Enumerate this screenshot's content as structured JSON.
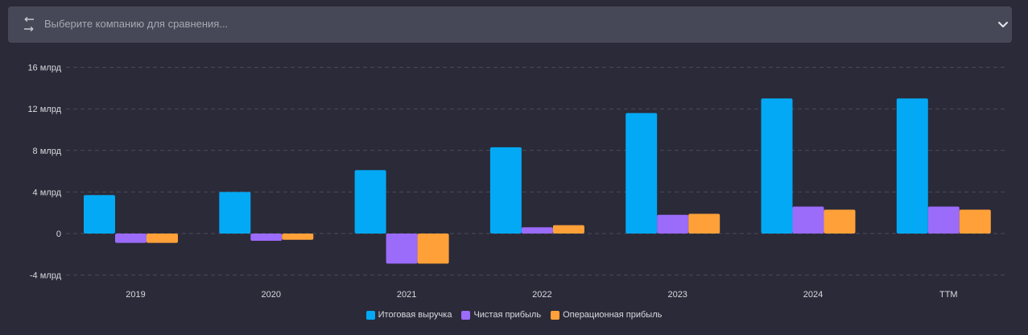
{
  "compare": {
    "placeholder": "Выберите компанию для сравнения...",
    "left_icon": "swap-arrows-icon",
    "right_icon": "chevron-down-icon"
  },
  "chart_data": {
    "type": "bar",
    "categories": [
      "2019",
      "2020",
      "2021",
      "2022",
      "2023",
      "2024",
      "TTM"
    ],
    "series": [
      {
        "name": "Итоговая выручка",
        "color": "#03a9f4",
        "values": [
          3.7,
          4.0,
          6.1,
          8.3,
          11.6,
          13.0,
          13.0
        ]
      },
      {
        "name": "Чистая прибыль",
        "color": "#9b6bfa",
        "values": [
          -0.9,
          -0.7,
          -2.9,
          0.6,
          1.8,
          2.6,
          2.6
        ]
      },
      {
        "name": "Операционная прибыль",
        "color": "#ffa138",
        "values": [
          -0.9,
          -0.6,
          -2.9,
          0.8,
          1.9,
          2.3,
          2.3
        ]
      }
    ],
    "yticks": [
      "16 млрд",
      "12 млрд",
      "8 млрд",
      "4 млрд",
      "0",
      "-4 млрд"
    ],
    "ylim": [
      -4,
      16
    ],
    "grid": true,
    "legend": "bottom-center"
  }
}
